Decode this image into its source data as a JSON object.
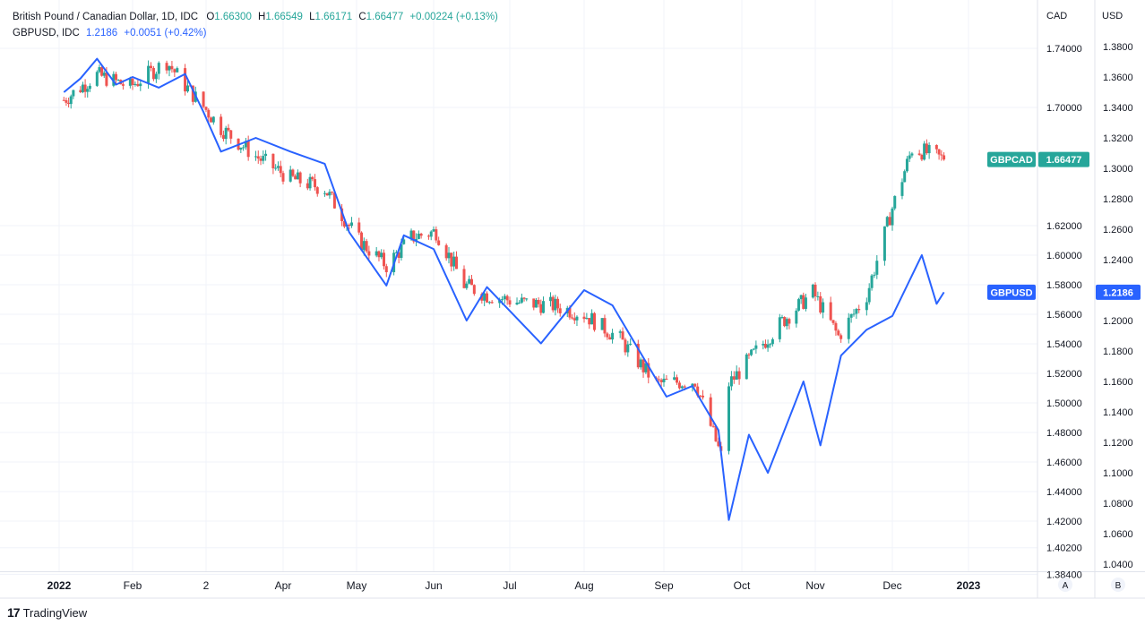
{
  "legend": {
    "main_symbol": "British Pound / Canadian Dollar, 1D, IDC",
    "o_label": "O",
    "o_value": "1.66300",
    "h_label": "H",
    "h_value": "1.66549",
    "l_label": "L",
    "l_value": "1.66171",
    "c_label": "C",
    "c_value": "1.66477",
    "change": "+0.00224 (+0.13%)",
    "compare_symbol": "GBPUSD, IDC",
    "compare_value": "1.2186",
    "compare_change": "+0.0051 (+0.42%)"
  },
  "axes": {
    "left_scale_label": "CAD",
    "right_scale_label": "USD",
    "left_scale_button": "A",
    "right_scale_button": "B"
  },
  "badges": {
    "gbpcad_name": "GBPCAD",
    "gbpcad_value": "1.66477",
    "gbpusd_name": "GBPUSD",
    "gbpusd_value": "1.2186"
  },
  "footer": {
    "brand": "TradingView",
    "logo": "17"
  },
  "colors": {
    "up": "#26a69a",
    "down": "#ef5350",
    "line": "#2962ff",
    "grid": "#f0f3fa"
  },
  "chart_data": {
    "type": "line",
    "title": "British Pound / Canadian Dollar, 1D, IDC",
    "x_ticks": [
      "2022",
      "Feb",
      "2",
      "Apr",
      "May",
      "Jun",
      "Jul",
      "Aug",
      "Sep",
      "Oct",
      "Nov",
      "Dec",
      "2023"
    ],
    "y_left_ticks": [
      "1.74000",
      "1.70000",
      "1.62000",
      "1.60000",
      "1.58000",
      "1.56000",
      "1.54000",
      "1.52000",
      "1.50000",
      "1.48000",
      "1.46000",
      "1.44000",
      "1.42000",
      "1.40200",
      "1.38400"
    ],
    "y_right_ticks": [
      "1.3800",
      "1.3600",
      "1.3400",
      "1.3200",
      "1.3000",
      "1.2800",
      "1.2600",
      "1.2400",
      "1.2200",
      "1.2000",
      "1.1800",
      "1.1600",
      "1.1400",
      "1.1200",
      "1.1000",
      "1.0800",
      "1.0600",
      "1.0400"
    ],
    "series": [
      {
        "name": "GBPCAD",
        "style": "candles",
        "axis": "left",
        "x": [
          "2022-01-03",
          "2022-01-17",
          "2022-01-31",
          "2022-02-14",
          "2022-02-21",
          "2022-03-07",
          "2022-03-21",
          "2022-04-04",
          "2022-04-18",
          "2022-05-02",
          "2022-05-13",
          "2022-05-23",
          "2022-06-02",
          "2022-06-13",
          "2022-06-22",
          "2022-07-05",
          "2022-07-19",
          "2022-08-01",
          "2022-08-15",
          "2022-08-29",
          "2022-09-13",
          "2022-09-23",
          "2022-09-26",
          "2022-10-06",
          "2022-10-18",
          "2022-10-31",
          "2022-11-10",
          "2022-11-21",
          "2022-12-01",
          "2022-12-09",
          "2022-12-14",
          "2022-12-22"
        ],
        "y": [
          1.705,
          1.722,
          1.714,
          1.731,
          1.715,
          1.686,
          1.667,
          1.652,
          1.645,
          1.61,
          1.593,
          1.612,
          1.616,
          1.58,
          1.573,
          1.568,
          1.566,
          1.56,
          1.543,
          1.513,
          1.515,
          1.464,
          1.513,
          1.533,
          1.555,
          1.575,
          1.545,
          1.573,
          1.632,
          1.672,
          1.67,
          1.66477
        ]
      },
      {
        "name": "GBPUSD",
        "style": "line",
        "axis": "right",
        "x": [
          "2022-01-03",
          "2022-01-10",
          "2022-01-17",
          "2022-01-25",
          "2022-02-01",
          "2022-02-11",
          "2022-02-21",
          "2022-02-28",
          "2022-03-07",
          "2022-03-21",
          "2022-04-04",
          "2022-04-18",
          "2022-04-28",
          "2022-05-13",
          "2022-05-20",
          "2022-06-01",
          "2022-06-14",
          "2022-06-22",
          "2022-07-14",
          "2022-08-01",
          "2022-08-12",
          "2022-09-02",
          "2022-09-12",
          "2022-09-22",
          "2022-09-26",
          "2022-10-04",
          "2022-10-12",
          "2022-10-27",
          "2022-11-03",
          "2022-11-11",
          "2022-11-21",
          "2022-12-01",
          "2022-12-13",
          "2022-12-19",
          "2022-12-22"
        ],
        "y": [
          1.35,
          1.359,
          1.372,
          1.355,
          1.36,
          1.353,
          1.362,
          1.337,
          1.311,
          1.32,
          1.311,
          1.303,
          1.258,
          1.223,
          1.256,
          1.247,
          1.2,
          1.222,
          1.185,
          1.22,
          1.21,
          1.15,
          1.157,
          1.128,
          1.069,
          1.125,
          1.1,
          1.16,
          1.118,
          1.177,
          1.194,
          1.203,
          1.243,
          1.211,
          1.2186
        ]
      }
    ]
  }
}
